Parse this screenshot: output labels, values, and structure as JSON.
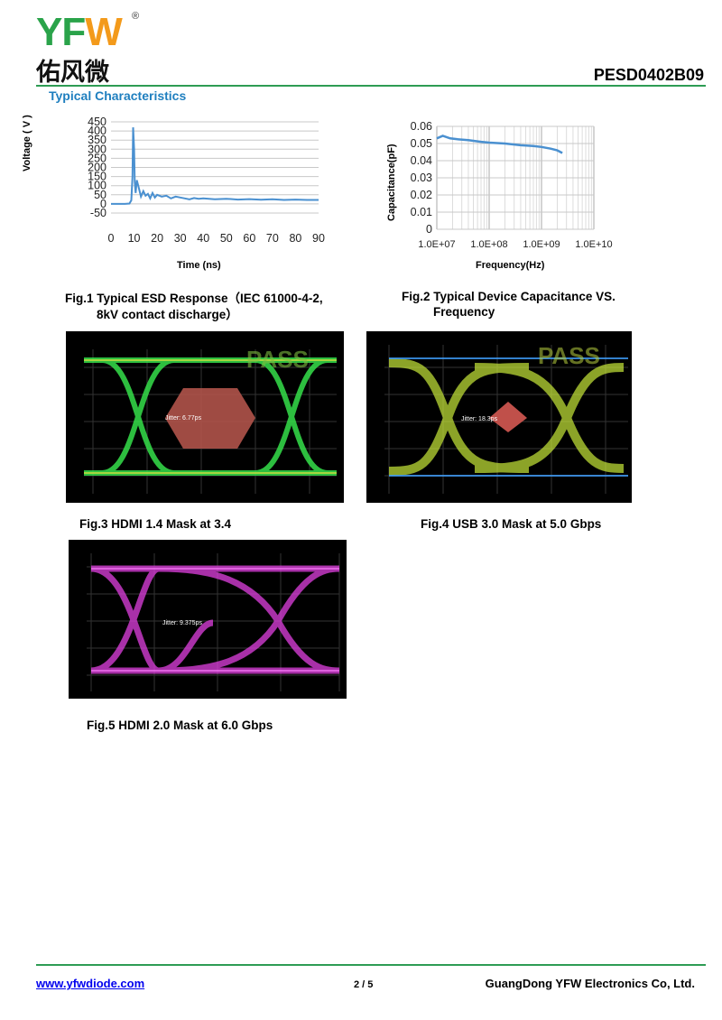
{
  "header": {
    "logo_text_y": "YF",
    "logo_text_w": "W",
    "logo_registered": "®",
    "logo_cn": "佑风微",
    "part_number": "PESD0402B09",
    "section_title": "Typical Characteristics"
  },
  "chart_data": [
    {
      "type": "line",
      "xlabel": "Time (ns)",
      "ylabel": "Voltage ( V )",
      "xticks": [
        0,
        10,
        20,
        30,
        40,
        50,
        60,
        70,
        80,
        90
      ],
      "yticks": [
        450,
        400,
        350,
        300,
        250,
        200,
        150,
        100,
        50,
        0,
        -50
      ],
      "xlim": [
        0,
        90
      ],
      "ylim": [
        -50,
        450
      ],
      "grid": true,
      "color": "#4a90d0",
      "series": [
        {
          "x": [
            0,
            6,
            8,
            8.8,
            9.3,
            9.6,
            10,
            10.3,
            10.7,
            11.2,
            12,
            13,
            14,
            15,
            16,
            17,
            18,
            19,
            20,
            22,
            24,
            26,
            28,
            30,
            32,
            34,
            36,
            38,
            40,
            45,
            50,
            55,
            60,
            65,
            70,
            75,
            80,
            85,
            90
          ],
          "y": [
            0,
            0,
            2,
            20,
            150,
            420,
            300,
            120,
            60,
            130,
            90,
            40,
            70,
            45,
            55,
            30,
            60,
            35,
            50,
            40,
            45,
            30,
            40,
            35,
            30,
            25,
            32,
            28,
            30,
            25,
            28,
            24,
            26,
            23,
            25,
            22,
            24,
            22,
            22
          ]
        }
      ]
    },
    {
      "type": "line",
      "xlabel": "Frequency(Hz)",
      "ylabel": "Capacitance(pF)",
      "xscale": "log",
      "xticks": [
        "1.0E+07",
        "1.0E+08",
        "1.0E+09",
        "1.0E+10"
      ],
      "yticks": [
        0.06,
        0.05,
        0.04,
        0.03,
        0.02,
        0.01,
        0
      ],
      "xlim": [
        10000000.0,
        10000000000.0
      ],
      "ylim": [
        0,
        0.06
      ],
      "grid": true,
      "color": "#4a90d0",
      "series": [
        {
          "x": [
            10000000.0,
            13000000.0,
            18000000.0,
            25000000.0,
            40000000.0,
            70000000.0,
            100000000.0,
            200000000.0,
            400000000.0,
            700000000.0,
            1000000000.0,
            1500000000.0,
            2000000000.0,
            2500000000.0
          ],
          "y": [
            0.053,
            0.0545,
            0.053,
            0.0525,
            0.052,
            0.051,
            0.0505,
            0.05,
            0.049,
            0.0485,
            0.048,
            0.047,
            0.046,
            0.0445
          ]
        }
      ]
    }
  ],
  "figures": {
    "fig1_caption_line1": "Fig.1 Typical ESD Response（IEC 61000-4-2,",
    "fig1_caption_line2": "8kV contact discharge）",
    "fig2_caption_line1": "Fig.2 Typical Device Capacitance VS.",
    "fig2_caption_line2": "Frequency",
    "fig3_caption": "Fig.3 HDMI 1.4 Mask at 3.4",
    "fig4_caption": "Fig.4 USB 3.0 Mask at 5.0 Gbps",
    "fig5_caption": "Fig.5 HDMI 2.0 Mask at 6.0 Gbps",
    "pass_label": "PASS",
    "eye1": {
      "jitter": "Jitter: 6.77ps",
      "color": "#36e04a",
      "mask_color": "#b0534a"
    },
    "eye2": {
      "jitter": "Jitter: 18.3ps",
      "color": "#c8e83a",
      "mask_color": "#c0504a"
    },
    "eye3": {
      "jitter": "Jitter: 9.375ps",
      "color": "#e040e0",
      "mask_color": "#e040e0"
    }
  },
  "footer": {
    "website": "www.yfwdiode.com",
    "page": "2 / 5",
    "company": "GuangDong YFW Electronics Co, Ltd."
  }
}
